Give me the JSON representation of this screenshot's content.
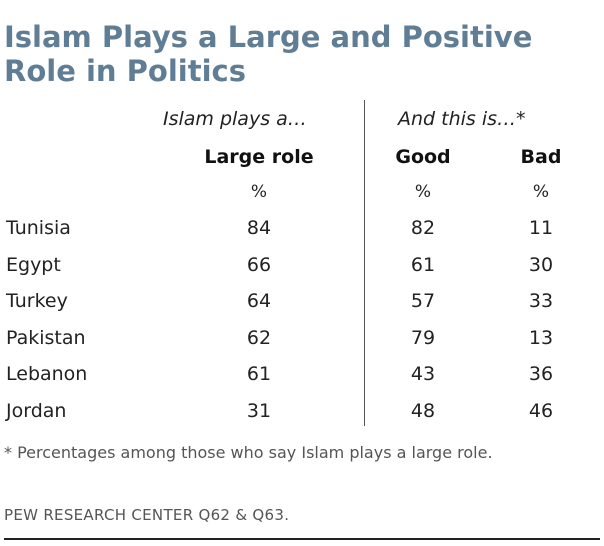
{
  "title": "Islam Plays a Large and Positive Role in Politics",
  "chart_data": {
    "type": "table",
    "title": "Islam Plays a Large and Positive Role in Politics",
    "group_headers": {
      "left": "Islam plays a…",
      "right": "And this is…*"
    },
    "columns": [
      "Large role",
      "Good",
      "Bad"
    ],
    "units": [
      "%",
      "%",
      "%"
    ],
    "rows": [
      {
        "country": "Tunisia",
        "large_role": 84,
        "good": 82,
        "bad": 11
      },
      {
        "country": "Egypt",
        "large_role": 66,
        "good": 61,
        "bad": 30
      },
      {
        "country": "Turkey",
        "large_role": 64,
        "good": 57,
        "bad": 33
      },
      {
        "country": "Pakistan",
        "large_role": 62,
        "good": 79,
        "bad": 13
      },
      {
        "country": "Lebanon",
        "large_role": 61,
        "good": 43,
        "bad": 36
      },
      {
        "country": "Jordan",
        "large_role": 31,
        "good": 48,
        "bad": 46
      }
    ]
  },
  "footnote": "* Percentages among those who say Islam plays a large role.",
  "source": "PEW RESEARCH  CENTER Q62 & Q63.",
  "colors": {
    "title": "#5f7d94",
    "text": "#222222",
    "muted": "#555555"
  }
}
